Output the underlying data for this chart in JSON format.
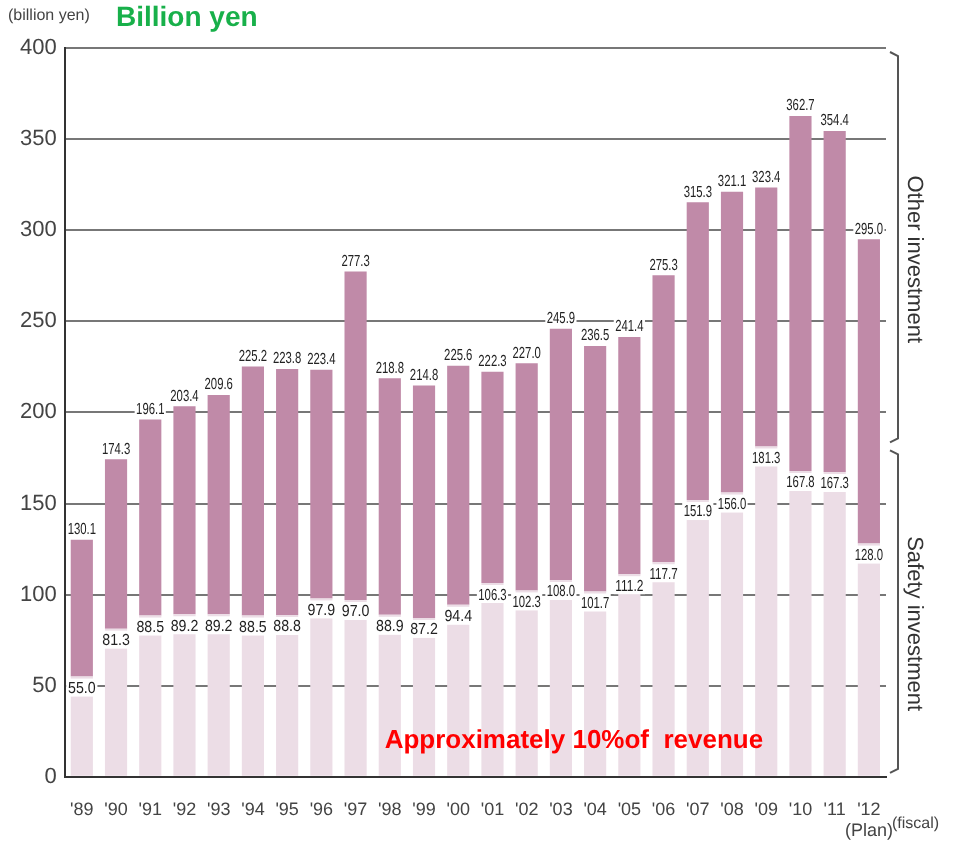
{
  "chart_data": {
    "type": "bar",
    "title": "Billion yen",
    "ylabel": "(billion yen)",
    "xlabel": "(fiscal)",
    "categories": [
      "'89",
      "'90",
      "'91",
      "'92",
      "'93",
      "'94",
      "'95",
      "'96",
      "'97",
      "'98",
      "'99",
      "'00",
      "'01",
      "'02",
      "'03",
      "'04",
      "'05",
      "'06",
      "'07",
      "'08",
      "'09",
      "'10",
      "'11",
      "'12 (Plan)"
    ],
    "stacked": true,
    "series": [
      {
        "name": "Safety investment",
        "color": "#ecdde6",
        "values": [
          55.0,
          81.3,
          88.5,
          89.2,
          89.2,
          88.5,
          88.8,
          97.9,
          97.0,
          88.9,
          87.2,
          94.4,
          106.3,
          102.3,
          108.0,
          101.7,
          111.2,
          117.7,
          151.9,
          156.0,
          181.3,
          167.8,
          167.3,
          128.0
        ],
        "value_labels": [
          "55.0",
          "81.3",
          "88.5",
          "89.2",
          "89.2",
          "88.5",
          "88.8",
          "97.9",
          "97.0",
          "88.9",
          "87.2",
          "94.4",
          "106.3",
          "102.3",
          "108.0",
          "101.7",
          "111.2",
          "117.7",
          "151.9",
          "156.0",
          "181.3",
          "167.8",
          "167.3",
          "128.0"
        ]
      },
      {
        "name": "Other investment",
        "color": "#c08aa8",
        "values": [
          75.1,
          93.0,
          107.6,
          114.2,
          120.4,
          136.7,
          135.0,
          125.5,
          180.3,
          129.9,
          127.6,
          131.2,
          116.0,
          124.7,
          137.9,
          134.8,
          130.2,
          157.6,
          163.4,
          165.1,
          142.1,
          194.9,
          187.1,
          167.0
        ]
      }
    ],
    "totals": [
      "130.1",
      "174.3",
      "196.1",
      "203.4",
      "209.6",
      "225.2",
      "223.8",
      "223.4",
      "277.3",
      "218.8",
      "214.8",
      "225.6",
      "222.3",
      "227.0",
      "245.9",
      "236.5",
      "241.4",
      "275.3",
      "315.3",
      "321.1",
      "323.4",
      "362.7",
      "354.4",
      "295.0"
    ],
    "ylim": [
      0,
      400
    ],
    "yticks": [
      0,
      50,
      100,
      150,
      200,
      250,
      300,
      350,
      400
    ],
    "grid": "y",
    "legend": "right",
    "annotations": [
      "Approximately 10%of  revenue"
    ]
  }
}
